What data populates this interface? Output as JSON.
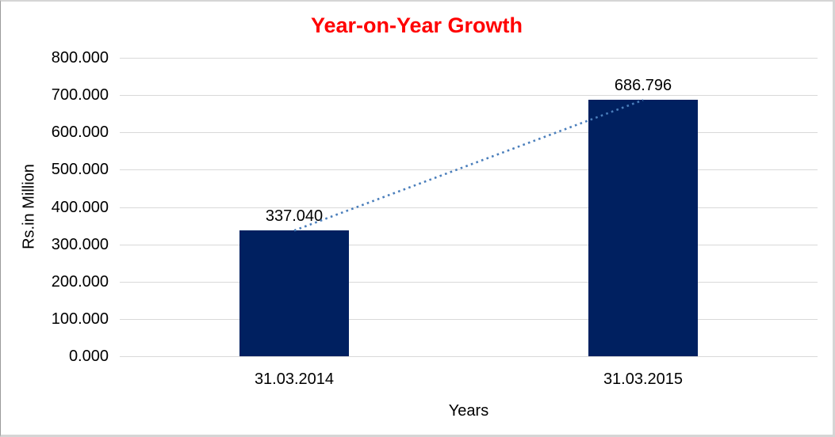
{
  "chart_data": {
    "type": "bar",
    "title": "Year-on-Year Growth",
    "xlabel": "Years",
    "ylabel": "Rs.in Million",
    "categories": [
      "31.03.2014",
      "31.03.2015"
    ],
    "values": [
      337.04,
      686.796
    ],
    "value_labels": [
      "337.040",
      "686.796"
    ],
    "ylim": [
      0,
      800
    ],
    "ytick_step": 100,
    "ytick_decimals": 3,
    "grid": true,
    "legend_position": "none",
    "trendline": {
      "style": "dotted",
      "connects": "bar-top-centers"
    },
    "colors": {
      "bar": "#002060",
      "title": "#FF0000",
      "gridline": "#D9D9D9",
      "trendline": "#4A7EBB",
      "text": "#000000",
      "background": "#FFFFFF"
    }
  }
}
